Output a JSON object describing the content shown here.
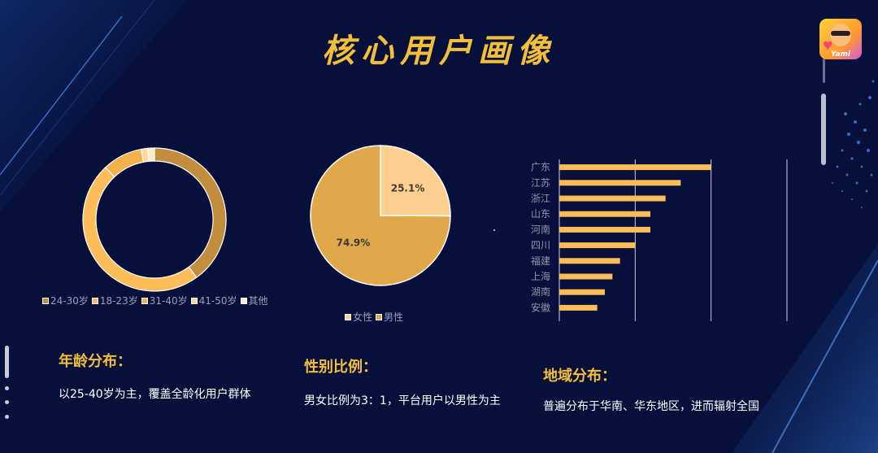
{
  "header": {
    "title": "核心用户画像"
  },
  "logo": {
    "brand": "Yami"
  },
  "age_panel": {
    "title": "年龄分布：",
    "text": "以25-40岁为主，覆盖全龄化用户群体"
  },
  "gender_panel": {
    "title": "性别比例：",
    "text": "男女比例为3：1，平台用户以男性为主"
  },
  "region_panel": {
    "title": "地域分布：",
    "text": "普遍分布于华南、华东地区，进而辐射全国"
  },
  "colors": {
    "background": "#06103a",
    "accent": "#f3bf3b",
    "age_24_30": "#c28d3c",
    "age_18_23": "#ffbd5a",
    "age_31_40": "#f2b14a",
    "age_41_50": "#ffd79c",
    "age_other": "#ffe9c8",
    "female": "#ffcf8f",
    "male": "#e0a84a",
    "bar": "#ffbd5a"
  },
  "chart_data": [
    {
      "type": "pie",
      "variant": "donut",
      "categories": [
        "24-30岁",
        "18-23岁",
        "31-40岁",
        "41-50岁",
        "其他"
      ],
      "values": [
        40,
        48,
        9,
        1.5,
        1.5
      ],
      "legend_position": "bottom"
    },
    {
      "type": "pie",
      "categories": [
        "女性",
        "男性"
      ],
      "values": [
        25.1,
        74.9
      ],
      "data_labels": [
        "25.1%",
        "74.9%"
      ],
      "legend_position": "bottom"
    },
    {
      "type": "bar",
      "orientation": "horizontal",
      "categories": [
        "广东",
        "江苏",
        "浙江",
        "山东",
        "河南",
        "四川",
        "福建",
        "上海",
        "湖南",
        "安徽"
      ],
      "values": [
        100,
        80,
        70,
        60,
        60,
        50,
        40,
        35,
        30,
        25
      ],
      "xlim": [
        0,
        150
      ],
      "grid": true
    }
  ]
}
